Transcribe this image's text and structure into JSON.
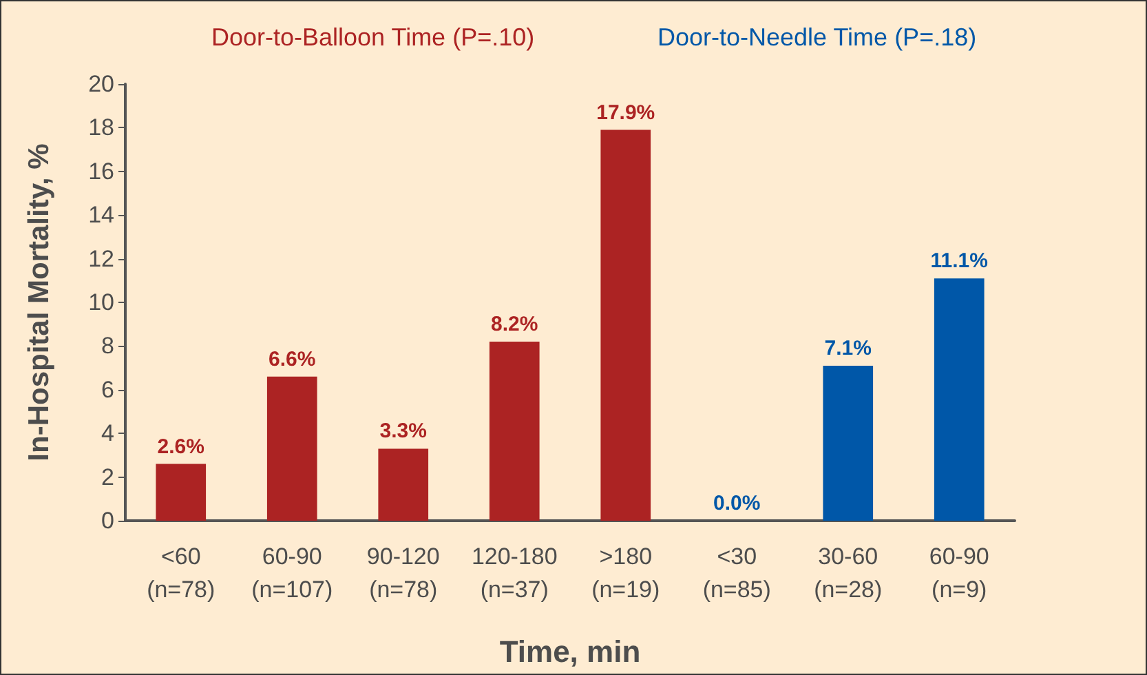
{
  "chart_data": {
    "type": "bar",
    "xlabel": "Time, min",
    "ylabel": "In-Hospital Mortality, %",
    "categories": [
      "<60\n(n=78)",
      "60-90\n(n=107)",
      "90-120\n(n=78)",
      "120-180\n(n=37)",
      ">180\n(n=19)",
      "<30\n(n=85)",
      "30-60\n(n=28)",
      "60-90\n(n=9)"
    ],
    "series": [
      {
        "name": "Door-to-Balloon Time (P=.10)",
        "color": "#ac2323",
        "values": [
          2.6,
          6.6,
          3.3,
          8.2,
          17.9,
          null,
          null,
          null
        ],
        "value_labels": [
          "2.6%",
          "6.6%",
          "3.3%",
          "8.2%",
          "17.9%",
          null,
          null,
          null
        ]
      },
      {
        "name": "Door-to-Needle Time (P=.18)",
        "color": "#0057a8",
        "values": [
          null,
          null,
          null,
          null,
          null,
          0.0,
          7.1,
          11.1
        ],
        "value_labels": [
          null,
          null,
          null,
          null,
          null,
          "0.0%",
          "7.1%",
          "11.1%"
        ]
      }
    ],
    "ylim": [
      0,
      20
    ],
    "yticks": [
      0,
      2,
      4,
      6,
      8,
      10,
      12,
      14,
      16,
      18,
      20
    ],
    "grid": false,
    "legend": "top"
  }
}
